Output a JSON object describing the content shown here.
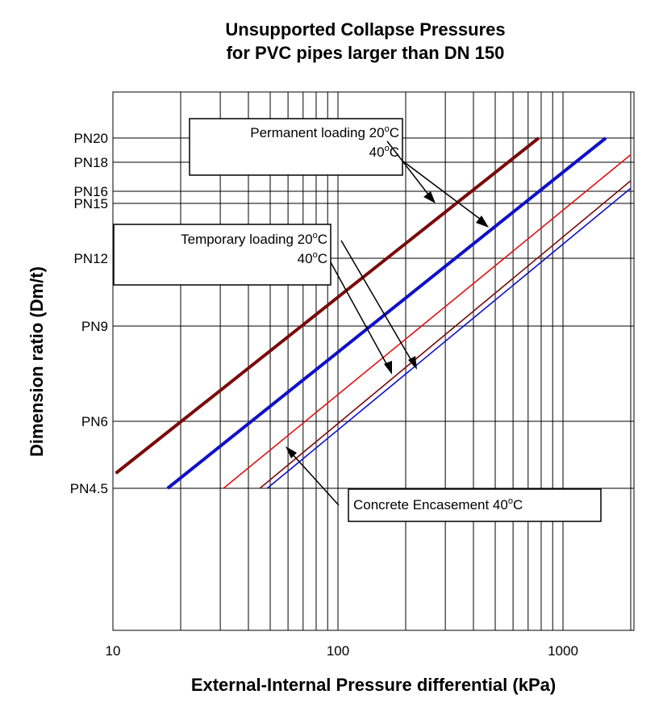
{
  "chart_data": {
    "type": "line",
    "title_line1": "Unsupported Collapse Pressures",
    "title_line2": "for PVC pipes larger than DN 150",
    "xlabel": "External-Internal Pressure differential (kPa)",
    "ylabel": "Dimension ratio (Dm/t)",
    "x_scale": "log",
    "xlim": [
      10,
      2000
    ],
    "grid": true,
    "x_ticks": [
      {
        "value": 10,
        "label": "10"
      },
      {
        "value": 100,
        "label": "100"
      },
      {
        "value": 1000,
        "label": "1000"
      }
    ],
    "y_ticks": [
      {
        "value": 20,
        "label": "PN20"
      },
      {
        "value": 18,
        "label": "PN18"
      },
      {
        "value": 16,
        "label": "PN16"
      },
      {
        "value": 15,
        "label": "PN15"
      },
      {
        "value": 12,
        "label": "PN12"
      },
      {
        "value": 9,
        "label": "PN9"
      },
      {
        "value": 6,
        "label": "PN6"
      },
      {
        "value": 4.5,
        "label": "PN4.5"
      }
    ],
    "series": [
      {
        "group": "Permanent loading",
        "temp": "20°C",
        "color": "#7a0a0a",
        "width": "thick",
        "x": [
          10.3,
          780
        ],
        "y": [
          4.8,
          20
        ]
      },
      {
        "group": "Permanent loading",
        "temp": "40°C",
        "color": "#1010c8",
        "width": "thick",
        "x": [
          17.5,
          1550
        ],
        "y": [
          4.5,
          20
        ]
      },
      {
        "group": "Temporary loading",
        "temp": "20°C",
        "color": "#e01010",
        "width": "thin",
        "x": [
          31,
          2000
        ],
        "y": [
          4.5,
          18.6
        ]
      },
      {
        "group": "Temporary loading",
        "temp": "40°C",
        "color": "#7a0a0a",
        "width": "thin",
        "x": [
          45,
          2000
        ],
        "y": [
          4.5,
          16.7
        ]
      },
      {
        "group": "Concrete Encasement",
        "temp": "40°C",
        "color": "#1010c8",
        "width": "thin",
        "x": [
          48.5,
          2000
        ],
        "y": [
          4.5,
          16.2
        ]
      }
    ],
    "annotations": [
      {
        "id": "permanent",
        "line1_text": "Permanent loading 20",
        "line1_sup": "o",
        "line1_unit": "C",
        "line2_text": "40",
        "line2_sup": "o",
        "line2_unit": "C"
      },
      {
        "id": "temporary",
        "line1_text": "Temporary loading 20",
        "line1_sup": "o",
        "line1_unit": "C",
        "line2_text": "40",
        "line2_sup": "o",
        "line2_unit": "C"
      },
      {
        "id": "concrete",
        "line1_text": "Concrete Encasement 40",
        "line1_sup": "o",
        "line1_unit": "C"
      }
    ]
  }
}
